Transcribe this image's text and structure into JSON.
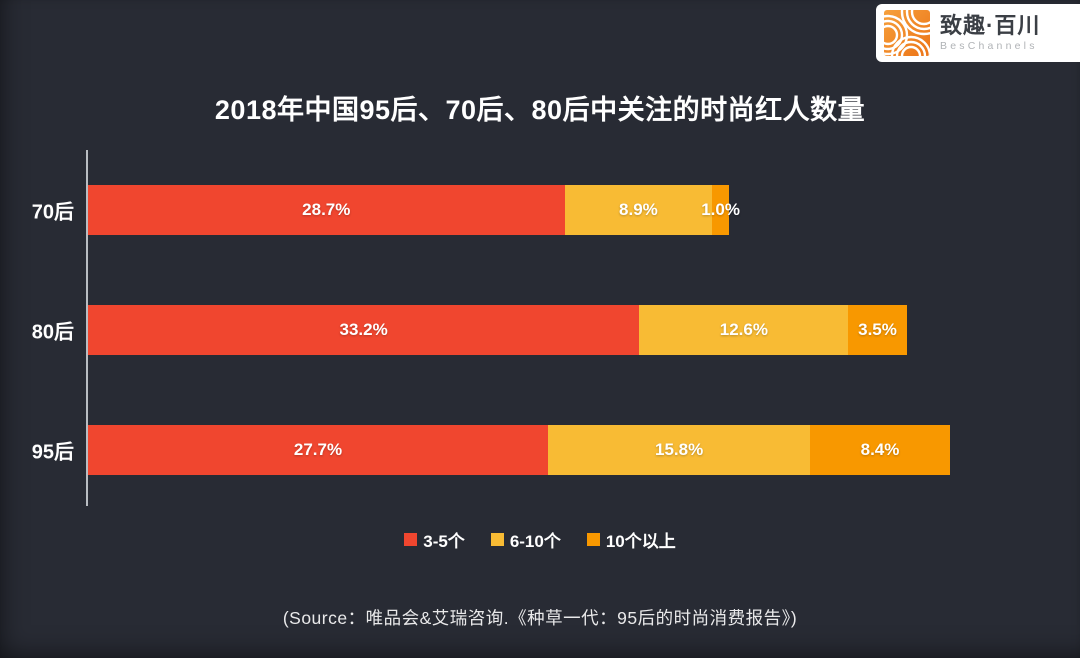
{
  "header": {
    "logo": {
      "brand_cn": "致趣·百川",
      "brand_en": "BesChannels",
      "icon": "beschannels-arcs-icon",
      "icon_color": "#f08221"
    }
  },
  "chart_data": {
    "type": "bar",
    "orientation": "horizontal",
    "stacked": true,
    "title": "2018年中国95后、70后、80后中关注的时尚红人数量",
    "categories": [
      "70后",
      "80后",
      "95后"
    ],
    "series": [
      {
        "name": "3-5个",
        "color": "#F0462F",
        "values": [
          28.7,
          33.2,
          27.7
        ]
      },
      {
        "name": "6-10个",
        "color": "#F8BB34",
        "values": [
          8.9,
          12.6,
          15.8
        ]
      },
      {
        "name": "10个以上",
        "color": "#F89800",
        "values": [
          1.0,
          3.5,
          8.4
        ]
      }
    ],
    "value_suffix": "%",
    "axis_max": 53,
    "grid": false,
    "legend_position": "bottom",
    "background_color": "#282B34",
    "axis_line_color": "#b9bdc2"
  },
  "source_note": "(Source：唯品会&艾瑞咨询.《种草一代：95后的时尚消费报告》)"
}
